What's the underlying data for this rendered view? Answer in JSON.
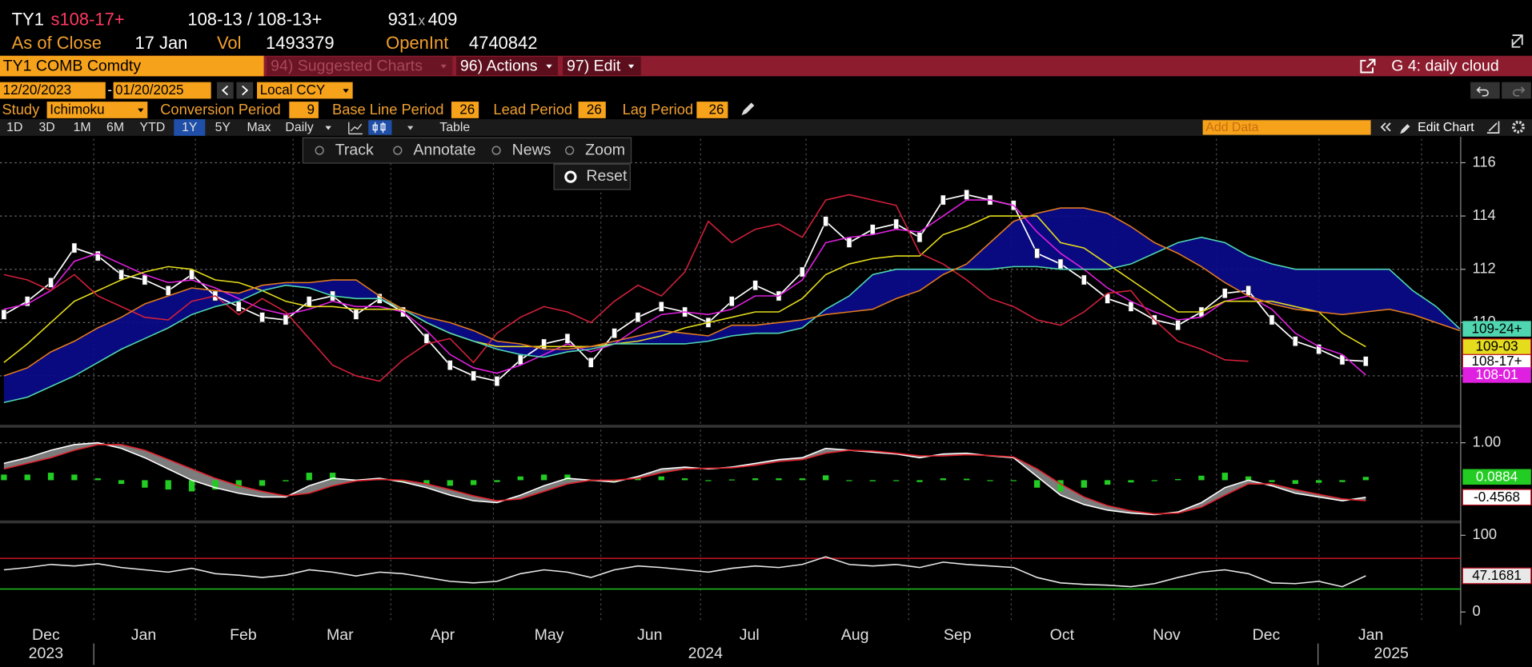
{
  "ui": {
    "quote": {
      "ticker": "TY1",
      "last": "s108-17+",
      "bid_ask": "108-13 / 108-13+",
      "bid_size": "931",
      "x": "x",
      "ask_size": "409",
      "close_label": "As of Close",
      "close_date": "17 Jan",
      "vol_label": "Vol",
      "vol": "1493379",
      "oi_label": "OpenInt",
      "oi": "4740842"
    },
    "toolbar": {
      "security": "TY1 COMB Comdty",
      "suggested": "94) Suggested Charts",
      "actions": "96) Actions",
      "edit": "97) Edit",
      "chart_name": "G 4: daily cloud"
    },
    "range": {
      "start": "12/20/2023",
      "dash": "-",
      "end": "01/20/2025",
      "currency": "Local CCY"
    },
    "study": {
      "label": "Study",
      "name": "Ichimoku",
      "params": [
        {
          "label": "Conversion Period",
          "value": 9
        },
        {
          "label": "Base Line Period",
          "value": 26
        },
        {
          "label": "Lead Period",
          "value": 26
        },
        {
          "label": "Lag Period",
          "value": 26
        }
      ]
    },
    "periods": [
      "1D",
      "3D",
      "1M",
      "6M",
      "YTD",
      "1Y",
      "5Y",
      "Max"
    ],
    "selected_period": "1Y",
    "frequency": "Daily",
    "table": "Table",
    "add_data": "Add Data",
    "edit_chart": "Edit Chart",
    "tools": [
      "Track",
      "Annotate",
      "News",
      "Zoom"
    ],
    "reset": "Reset"
  },
  "time_axis": {
    "months": [
      "Dec",
      "Jan",
      "Feb",
      "Mar",
      "Apr",
      "May",
      "Jun",
      "Jul",
      "Aug",
      "Sep",
      "Oct",
      "Nov",
      "Dec",
      "Jan"
    ],
    "years": [
      "2023",
      "2024",
      "2025"
    ]
  },
  "chart_data": [
    {
      "type": "line",
      "ylim": [
        106.2,
        116.9
      ],
      "yticks": [
        108,
        110,
        112,
        114,
        116
      ],
      "grid": true,
      "fill_color": "#0b0b8e",
      "series": [
        {
          "kind": "price",
          "color": "#ffffff",
          "last_label": "108-17+",
          "values": [
            110.3,
            110.8,
            111.5,
            112.8,
            112.5,
            111.8,
            111.6,
            111.2,
            111.8,
            111.0,
            110.6,
            110.2,
            110.1,
            110.8,
            111.0,
            110.3,
            110.9,
            110.4,
            109.4,
            108.4,
            108.0,
            107.8,
            108.6,
            109.2,
            109.4,
            108.5,
            109.6,
            110.2,
            110.6,
            110.4,
            110.0,
            110.8,
            111.4,
            111.0,
            111.9,
            113.8,
            113.0,
            113.5,
            113.7,
            113.2,
            114.6,
            114.8,
            114.6,
            114.4,
            112.6,
            112.2,
            111.6,
            110.9,
            110.6,
            110.1,
            109.9,
            110.4,
            111.1,
            111.2,
            110.1,
            109.3,
            109.0,
            108.6,
            108.546875,
            null,
            null,
            null,
            null
          ]
        },
        {
          "kind": "line",
          "color": "#e020e0",
          "last_label": "108-01",
          "values": [
            110.5,
            110.7,
            111.2,
            112.3,
            112.6,
            112.2,
            111.8,
            111.5,
            111.6,
            111.3,
            110.9,
            110.5,
            110.3,
            110.5,
            110.8,
            110.6,
            110.6,
            110.4,
            109.7,
            108.8,
            108.3,
            108.1,
            108.4,
            108.8,
            109.2,
            108.9,
            109.2,
            109.8,
            110.3,
            110.4,
            110.3,
            110.5,
            111.0,
            111.0,
            111.6,
            113.0,
            113.2,
            113.3,
            113.5,
            113.4,
            114.0,
            114.6,
            114.6,
            114.4,
            113.4,
            112.6,
            112.0,
            111.3,
            110.8,
            110.4,
            110.1,
            110.2,
            110.8,
            111.0,
            110.5,
            109.6,
            109.1,
            108.8,
            108.03125,
            null,
            null,
            null,
            null
          ]
        },
        {
          "kind": "line",
          "color": "#e4dc1c",
          "last_label": "109-03",
          "values": [
            108.5,
            109.2,
            110.0,
            110.8,
            111.2,
            111.6,
            111.9,
            112.1,
            112.0,
            111.6,
            111.5,
            111.2,
            110.8,
            110.6,
            110.6,
            110.5,
            110.5,
            110.5,
            110.0,
            109.6,
            109.3,
            109.1,
            109.1,
            109.1,
            109.1,
            109.1,
            109.2,
            109.3,
            109.5,
            109.8,
            110.0,
            110.2,
            110.4,
            110.4,
            110.9,
            111.8,
            112.2,
            112.4,
            112.5,
            112.5,
            113.3,
            113.6,
            114.0,
            114.0,
            114.0,
            113.0,
            112.8,
            112.2,
            111.6,
            111.0,
            110.4,
            110.4,
            110.8,
            110.8,
            110.8,
            110.6,
            110.4,
            109.6,
            109.09375,
            null,
            null,
            null,
            null
          ]
        },
        {
          "kind": "line",
          "color": "#d0203a",
          "values": [
            111.8,
            111.6,
            111.2,
            111.8,
            111.0,
            110.6,
            110.2,
            110.1,
            110.8,
            111.0,
            110.3,
            110.9,
            110.4,
            109.4,
            108.4,
            108.0,
            107.8,
            108.6,
            109.2,
            109.4,
            108.5,
            109.6,
            110.2,
            110.6,
            110.4,
            110.0,
            110.8,
            111.4,
            111.0,
            111.9,
            113.8,
            113.0,
            113.5,
            113.7,
            113.2,
            114.6,
            114.8,
            114.6,
            114.4,
            112.6,
            112.2,
            111.6,
            110.9,
            110.6,
            110.1,
            109.9,
            110.4,
            111.1,
            111.2,
            110.1,
            109.3,
            109.0,
            108.6,
            108.546875,
            null,
            null,
            null,
            null,
            null,
            null,
            null,
            null,
            null
          ]
        },
        {
          "kind": "line",
          "color": "#4fd6b0",
          "fill": true,
          "last_label": "109-24+",
          "values": [
            107.0,
            107.2,
            107.6,
            108.0,
            108.5,
            109.0,
            109.4,
            109.8,
            110.3,
            110.6,
            110.8,
            111.2,
            111.4,
            111.3,
            111.0,
            110.9,
            110.9,
            110.5,
            110.0,
            109.6,
            109.3,
            109.0,
            108.8,
            108.7,
            108.9,
            109.0,
            109.2,
            109.2,
            109.2,
            109.2,
            109.3,
            109.5,
            109.6,
            109.6,
            109.8,
            110.5,
            111.0,
            111.8,
            112.0,
            112.0,
            112.0,
            112.0,
            112.0,
            112.1,
            112.1,
            112.0,
            112.0,
            112.0,
            112.2,
            112.6,
            113.0,
            113.2,
            113.0,
            112.5,
            112.2,
            112.0,
            112.0,
            112.0,
            112.0,
            112.0,
            111.2,
            110.6,
            109.765625
          ]
        },
        {
          "kind": "line",
          "color": "#e07a1e",
          "fill": true,
          "values": [
            108.0,
            108.3,
            108.9,
            109.3,
            109.8,
            110.2,
            110.7,
            111.0,
            111.3,
            111.2,
            111.1,
            111.4,
            111.5,
            111.5,
            111.6,
            111.6,
            111.0,
            110.5,
            110.2,
            110.0,
            109.7,
            109.3,
            109.2,
            109.0,
            109.0,
            109.1,
            109.3,
            109.5,
            109.7,
            109.6,
            109.5,
            109.9,
            109.9,
            110.0,
            110.1,
            110.3,
            110.4,
            110.5,
            110.9,
            111.2,
            111.8,
            112.2,
            113.0,
            113.8,
            114.1,
            114.3,
            114.3,
            114.1,
            113.6,
            113.0,
            112.6,
            112.1,
            111.5,
            111.0,
            110.7,
            110.5,
            110.4,
            110.3,
            110.4,
            110.5,
            110.3,
            110.0,
            109.7
          ]
        }
      ]
    },
    {
      "type": "line",
      "ylim": [
        -1.05,
        1.35
      ],
      "yticks": [
        {
          "value": 1,
          "label": "1.00"
        }
      ],
      "grid": true,
      "fill_color": "#8a8a8a",
      "series": [
        {
          "kind": "histogram",
          "color": "#22cc22",
          "last_label": "0.0884",
          "values": [
            0.15,
            0.15,
            0.2,
            0.15,
            0.05,
            -0.1,
            -0.2,
            -0.25,
            -0.3,
            -0.25,
            -0.2,
            -0.15,
            -0.03,
            0.2,
            0.2,
            0.02,
            0.03,
            -0.05,
            -0.1,
            -0.15,
            -0.13,
            -0.05,
            0.1,
            0.15,
            0.15,
            0,
            -0.05,
            0.05,
            0.1,
            0.05,
            -0.02,
            0.02,
            0.05,
            0.05,
            0.05,
            0.13,
            0,
            -0.03,
            -0.02,
            -0.05,
            0.05,
            0.04,
            -0.01,
            -0.02,
            -0.2,
            -0.3,
            -0.2,
            -0.12,
            -0.06,
            -0.02,
            0.03,
            0.12,
            0.2,
            0.1,
            -0.05,
            -0.1,
            -0.07,
            -0.05,
            0.0884,
            null,
            null,
            null,
            null
          ]
        },
        {
          "kind": "line",
          "color": "#ffffff",
          "fill": true,
          "last_label": "-0.4568",
          "values": [
            0.45,
            0.6,
            0.8,
            0.95,
            1.0,
            0.85,
            0.6,
            0.3,
            0.0,
            -0.2,
            -0.35,
            -0.45,
            -0.45,
            -0.15,
            0.05,
            0.0,
            0.05,
            -0.05,
            -0.2,
            -0.4,
            -0.55,
            -0.6,
            -0.4,
            -0.15,
            0.05,
            0.0,
            -0.05,
            0.1,
            0.3,
            0.35,
            0.3,
            0.35,
            0.45,
            0.55,
            0.6,
            0.85,
            0.8,
            0.75,
            0.7,
            0.6,
            0.7,
            0.72,
            0.65,
            0.6,
            0.1,
            -0.4,
            -0.65,
            -0.8,
            -0.88,
            -0.92,
            -0.85,
            -0.6,
            -0.2,
            0.0,
            -0.15,
            -0.35,
            -0.45,
            -0.55,
            -0.4568,
            null,
            null,
            null,
            null
          ]
        },
        {
          "kind": "line",
          "color": "#e0202a",
          "fill": true,
          "values": [
            0.3,
            0.45,
            0.6,
            0.8,
            0.95,
            0.95,
            0.8,
            0.55,
            0.3,
            0.05,
            -0.15,
            -0.3,
            -0.42,
            -0.35,
            -0.15,
            -0.02,
            0.02,
            0.0,
            -0.1,
            -0.25,
            -0.42,
            -0.55,
            -0.5,
            -0.3,
            -0.1,
            0.0,
            0.0,
            0.05,
            0.2,
            0.3,
            0.32,
            0.33,
            0.4,
            0.5,
            0.55,
            0.72,
            0.8,
            0.78,
            0.72,
            0.65,
            0.65,
            0.68,
            0.66,
            0.62,
            0.3,
            -0.1,
            -0.45,
            -0.68,
            -0.82,
            -0.9,
            -0.88,
            -0.72,
            -0.4,
            -0.1,
            -0.1,
            -0.25,
            -0.38,
            -0.5,
            -0.55,
            null,
            null,
            null,
            null
          ]
        }
      ]
    },
    {
      "type": "line",
      "ylim": [
        -13,
        113
      ],
      "yticks": [
        0,
        100
      ],
      "grid": false,
      "levels": [
        {
          "value": 70,
          "color": "#c81424"
        },
        {
          "value": 30,
          "color": "#20c020"
        }
      ],
      "series": [
        {
          "kind": "line",
          "color": "#e8e8e8",
          "last_label": "47.1681",
          "values": [
            55,
            58,
            62,
            60,
            63,
            58,
            55,
            52,
            57,
            50,
            48,
            45,
            48,
            55,
            52,
            47,
            52,
            50,
            45,
            40,
            38,
            40,
            50,
            55,
            52,
            45,
            55,
            60,
            58,
            55,
            52,
            57,
            60,
            58,
            62,
            72,
            62,
            60,
            62,
            58,
            65,
            62,
            60,
            58,
            45,
            38,
            36,
            35,
            33,
            37,
            45,
            52,
            55,
            50,
            38,
            37,
            40,
            33,
            47.1681,
            null,
            null,
            null,
            null
          ]
        }
      ]
    }
  ]
}
